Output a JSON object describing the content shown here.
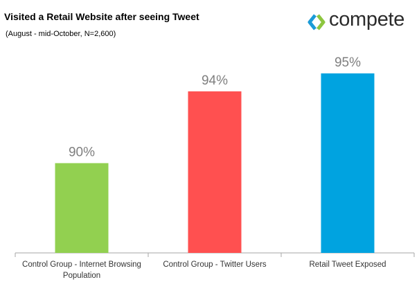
{
  "header": {
    "brand_name": "compete",
    "brand_colors": {
      "blue": "#1b9bd7",
      "green": "#8dc63f",
      "text": "#2b2b2b"
    }
  },
  "chart_data": {
    "type": "bar",
    "title": "Visited a Retail Website after seeing Tweet",
    "subtitle": "(August - mid-October, N=2,600)",
    "categories": [
      [
        "Control Group - Internet Browsing",
        "Population"
      ],
      [
        "Control Group - Twitter Users"
      ],
      [
        "Retail Tweet Exposed"
      ]
    ],
    "values": [
      90,
      94,
      95
    ],
    "value_labels": [
      "90%",
      "94%",
      "95%"
    ],
    "colors": [
      "#92d050",
      "#ff5050",
      "#00a3e0"
    ],
    "ylim": [
      85,
      96
    ],
    "grid": false,
    "xlabel": "",
    "ylabel": ""
  }
}
